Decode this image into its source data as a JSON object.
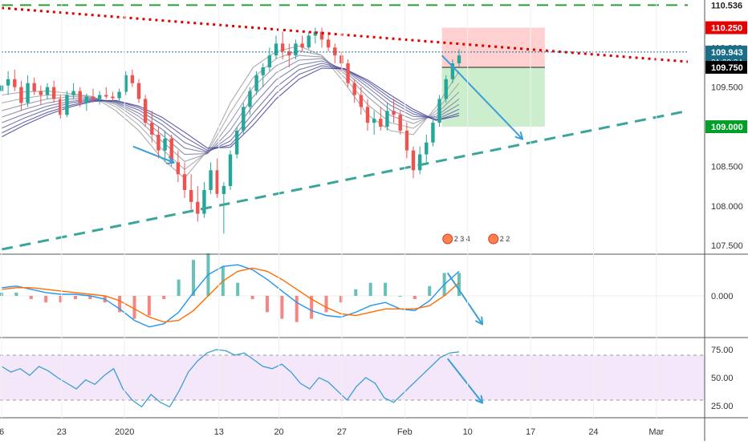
{
  "chart_data": {
    "type": "candlestick",
    "time_axis": {
      "tick_labels": [
        "6",
        "23",
        "2020",
        "13",
        "20",
        "27",
        "Feb",
        "10",
        "17",
        "24",
        "Mar"
      ]
    },
    "price_panel": {
      "axis_ticks": [
        "110.000",
        "109.500",
        "109.000",
        "108.500",
        "108.000",
        "107.500"
      ],
      "ylim": [
        107.4,
        110.6
      ],
      "price_tags": [
        {
          "value": 110.536,
          "label": "110.536",
          "style": "plain"
        },
        {
          "value": 110.25,
          "label": "110.250",
          "color": "#e60000"
        },
        {
          "value": 109.943,
          "label": "109.943",
          "color": "#1a6e8a",
          "extra": "01:33:34"
        },
        {
          "value": 109.75,
          "label": "109.750",
          "color": "#000000"
        },
        {
          "value": 109.0,
          "label": "109.000",
          "color": "#00a028"
        }
      ],
      "candles_ohlc": [
        [
          109.45,
          109.6,
          109.3,
          109.52
        ],
        [
          109.52,
          109.7,
          109.4,
          109.6
        ],
        [
          109.6,
          109.72,
          109.45,
          109.5
        ],
        [
          109.5,
          109.58,
          109.2,
          109.3
        ],
        [
          109.3,
          109.65,
          109.25,
          109.55
        ],
        [
          109.55,
          109.62,
          109.4,
          109.45
        ],
        [
          109.45,
          109.52,
          109.28,
          109.4
        ],
        [
          109.4,
          109.55,
          109.35,
          109.5
        ],
        [
          109.5,
          109.58,
          109.3,
          109.35
        ],
        [
          109.35,
          109.4,
          109.1,
          109.15
        ],
        [
          109.15,
          109.45,
          109.12,
          109.4
        ],
        [
          109.4,
          109.55,
          109.35,
          109.45
        ],
        [
          109.45,
          109.5,
          109.25,
          109.3
        ],
        [
          109.3,
          109.42,
          109.2,
          109.38
        ],
        [
          109.38,
          109.48,
          109.3,
          109.35
        ],
        [
          109.35,
          109.45,
          109.28,
          109.4
        ],
        [
          109.4,
          109.5,
          109.35,
          109.38
        ],
        [
          109.38,
          109.44,
          109.32,
          109.36
        ],
        [
          109.36,
          109.48,
          109.3,
          109.44
        ],
        [
          109.44,
          109.7,
          109.4,
          109.65
        ],
        [
          109.65,
          109.72,
          109.5,
          109.55
        ],
        [
          109.55,
          109.6,
          109.3,
          109.35
        ],
        [
          109.35,
          109.4,
          109.0,
          109.05
        ],
        [
          109.05,
          109.2,
          108.8,
          108.9
        ],
        [
          108.9,
          109.0,
          108.6,
          108.7
        ],
        [
          108.7,
          108.95,
          108.55,
          108.85
        ],
        [
          108.85,
          108.9,
          108.5,
          108.55
        ],
        [
          108.55,
          108.7,
          108.3,
          108.4
        ],
        [
          108.4,
          108.55,
          108.1,
          108.2
        ],
        [
          108.2,
          108.4,
          107.95,
          108.05
        ],
        [
          108.05,
          108.25,
          107.8,
          107.9
        ],
        [
          107.9,
          108.3,
          107.85,
          108.2
        ],
        [
          108.2,
          108.55,
          108.15,
          108.45
        ],
        [
          108.45,
          108.6,
          108.1,
          108.15
        ],
        [
          108.15,
          108.3,
          107.65,
          108.25
        ],
        [
          108.25,
          108.7,
          108.2,
          108.65
        ],
        [
          108.65,
          109.0,
          108.6,
          108.95
        ],
        [
          108.95,
          109.3,
          108.9,
          109.25
        ],
        [
          109.25,
          109.5,
          109.15,
          109.45
        ],
        [
          109.45,
          109.7,
          109.4,
          109.65
        ],
        [
          109.65,
          109.8,
          109.5,
          109.75
        ],
        [
          109.75,
          110.0,
          109.7,
          109.9
        ],
        [
          109.9,
          110.15,
          109.85,
          110.05
        ],
        [
          110.05,
          110.2,
          109.85,
          109.95
        ],
        [
          109.95,
          110.05,
          109.75,
          109.9
        ],
        [
          109.9,
          110.1,
          109.85,
          110.05
        ],
        [
          110.05,
          110.15,
          109.95,
          110.0
        ],
        [
          110.0,
          110.2,
          109.98,
          110.15
        ],
        [
          110.15,
          110.25,
          110.05,
          110.2
        ],
        [
          110.2,
          110.25,
          110.0,
          110.1
        ],
        [
          110.1,
          110.2,
          109.95,
          110.0
        ],
        [
          110.0,
          110.05,
          109.8,
          109.9
        ],
        [
          109.9,
          109.95,
          109.7,
          109.8
        ],
        [
          109.8,
          109.85,
          109.5,
          109.55
        ],
        [
          109.55,
          109.6,
          109.3,
          109.4
        ],
        [
          109.4,
          109.5,
          109.15,
          109.25
        ],
        [
          109.25,
          109.35,
          108.95,
          109.05
        ],
        [
          109.05,
          109.2,
          108.9,
          109.1
        ],
        [
          109.1,
          109.25,
          108.95,
          109.0
        ],
        [
          109.0,
          109.3,
          108.95,
          109.2
        ],
        [
          109.2,
          109.35,
          109.05,
          109.15
        ],
        [
          109.15,
          109.2,
          108.9,
          108.95
        ],
        [
          108.95,
          109.05,
          108.6,
          108.7
        ],
        [
          108.7,
          108.75,
          108.35,
          108.45
        ],
        [
          108.45,
          108.75,
          108.4,
          108.65
        ],
        [
          108.65,
          108.9,
          108.55,
          108.8
        ],
        [
          108.8,
          109.1,
          108.75,
          109.05
        ],
        [
          109.05,
          109.4,
          109.0,
          109.35
        ],
        [
          109.35,
          109.65,
          109.3,
          109.6
        ],
        [
          109.6,
          109.85,
          109.55,
          109.8
        ],
        [
          109.8,
          109.98,
          109.75,
          109.9
        ]
      ],
      "ema_ribbon": [
        [
          109.4,
          109.44,
          109.45,
          109.42,
          109.38,
          109.2,
          108.95,
          108.6,
          108.35,
          108.7,
          109.3,
          109.75,
          109.95,
          110.02,
          109.9,
          109.55,
          109.15,
          108.95,
          108.9,
          109.25,
          109.7
        ],
        [
          109.3,
          109.36,
          109.4,
          109.4,
          109.38,
          109.25,
          109.02,
          108.72,
          108.46,
          108.68,
          109.18,
          109.62,
          109.86,
          109.96,
          109.9,
          109.62,
          109.28,
          109.05,
          108.98,
          109.2,
          109.55
        ],
        [
          109.2,
          109.28,
          109.35,
          109.38,
          109.37,
          109.28,
          109.08,
          108.82,
          108.56,
          108.66,
          109.06,
          109.5,
          109.77,
          109.9,
          109.88,
          109.67,
          109.38,
          109.14,
          109.04,
          109.16,
          109.44
        ],
        [
          109.12,
          109.22,
          109.3,
          109.35,
          109.36,
          109.3,
          109.13,
          108.9,
          108.65,
          108.66,
          108.96,
          109.38,
          109.68,
          109.84,
          109.86,
          109.7,
          109.45,
          109.21,
          109.09,
          109.13,
          109.35
        ],
        [
          109.05,
          109.16,
          109.26,
          109.32,
          109.35,
          109.31,
          109.17,
          108.97,
          108.73,
          108.67,
          108.88,
          109.27,
          109.59,
          109.78,
          109.83,
          109.72,
          109.5,
          109.27,
          109.13,
          109.11,
          109.28
        ],
        [
          108.98,
          109.11,
          109.22,
          109.3,
          109.34,
          109.32,
          109.21,
          109.03,
          108.8,
          108.68,
          108.82,
          109.17,
          109.5,
          109.72,
          109.8,
          109.73,
          109.54,
          109.32,
          109.16,
          109.09,
          109.22
        ],
        [
          108.92,
          109.06,
          109.18,
          109.27,
          109.33,
          109.33,
          109.24,
          109.08,
          108.87,
          108.7,
          108.77,
          109.09,
          109.42,
          109.66,
          109.77,
          109.73,
          109.57,
          109.36,
          109.19,
          109.08,
          109.17
        ],
        [
          108.87,
          109.02,
          109.15,
          109.25,
          109.32,
          109.33,
          109.26,
          109.12,
          108.93,
          108.73,
          108.74,
          109.02,
          109.35,
          109.6,
          109.74,
          109.73,
          109.59,
          109.4,
          109.22,
          109.08,
          109.14
        ]
      ],
      "trendlines": [
        {
          "name": "top-horizontal",
          "style": "dashed",
          "color": "#27a035",
          "from": {
            "bar": 0,
            "price": 110.536
          },
          "to": {
            "bar": 120,
            "price": 110.536
          }
        },
        {
          "name": "descending-resistance",
          "style": "dotted",
          "color": "#e00000",
          "from": {
            "bar": 0,
            "price": 110.5
          },
          "to": {
            "bar": 120,
            "price": 109.82
          }
        },
        {
          "name": "ascending-support",
          "style": "dashed",
          "color": "#3aa59a",
          "from": {
            "bar": 0,
            "price": 107.45
          },
          "to": {
            "bar": 120,
            "price": 109.2
          }
        },
        {
          "name": "current-price",
          "style": "dotted",
          "color": "#1a6e8a",
          "from": {
            "bar": 0,
            "price": 109.943
          },
          "to": {
            "bar": 120,
            "price": 109.943
          }
        }
      ],
      "short_position": {
        "start_bar": 77,
        "end_bar": 95,
        "entry": 109.75,
        "stop": 110.25,
        "target": 109.0
      },
      "arrows": [
        {
          "from": {
            "bar": 77,
            "price": 109.9
          },
          "to": {
            "bar": 91,
            "price": 108.85
          }
        },
        {
          "from": {
            "bar": 23,
            "price": 108.75
          },
          "to": {
            "bar": 30,
            "price": 108.55
          }
        }
      ],
      "event_labels": [
        {
          "bar": 78,
          "text": "2 3 4"
        },
        {
          "bar": 86,
          "text": "2 2"
        }
      ]
    },
    "macd_panel": {
      "axis_ticks": [
        "0.000"
      ],
      "ylim": [
        -0.25,
        0.25
      ],
      "macd_line": [
        0.05,
        0.06,
        0.04,
        0.02,
        0.01,
        0.01,
        0.0,
        -0.02,
        -0.08,
        -0.15,
        -0.19,
        -0.17,
        -0.1,
        0.02,
        0.13,
        0.18,
        0.19,
        0.16,
        0.1,
        0.03,
        -0.04,
        -0.09,
        -0.12,
        -0.13,
        -0.1,
        -0.06,
        -0.04,
        -0.08,
        -0.09,
        -0.03,
        0.07,
        0.15
      ],
      "signal_line": [
        0.04,
        0.05,
        0.05,
        0.04,
        0.03,
        0.02,
        0.01,
        0.0,
        -0.03,
        -0.08,
        -0.13,
        -0.16,
        -0.15,
        -0.09,
        0.0,
        0.09,
        0.15,
        0.17,
        0.15,
        0.1,
        0.04,
        -0.02,
        -0.07,
        -0.11,
        -0.12,
        -0.1,
        -0.08,
        -0.08,
        -0.08,
        -0.06,
        0.0,
        0.08
      ],
      "arrow": {
        "from": {
          "bar": 78,
          "value": 0.14
        },
        "to": {
          "bar": 84,
          "value": -0.17
        }
      }
    },
    "rsi_panel": {
      "axis_ticks": [
        "75.00",
        "50.00",
        "25.00"
      ],
      "ylim": [
        15,
        85
      ],
      "band": [
        30,
        70
      ],
      "rsi_line": [
        60,
        55,
        58,
        52,
        60,
        56,
        50,
        45,
        40,
        48,
        44,
        52,
        58,
        40,
        30,
        24,
        35,
        28,
        24,
        38,
        55,
        65,
        72,
        75,
        74,
        70,
        72,
        66,
        60,
        58,
        62,
        55,
        45,
        40,
        50,
        46,
        38,
        30,
        42,
        50,
        45,
        32,
        28,
        36,
        44,
        52,
        60,
        68,
        72,
        73
      ],
      "arrow": {
        "from": {
          "bar": 78,
          "value": 67
        },
        "to": {
          "bar": 84,
          "value": 28
        }
      }
    }
  }
}
